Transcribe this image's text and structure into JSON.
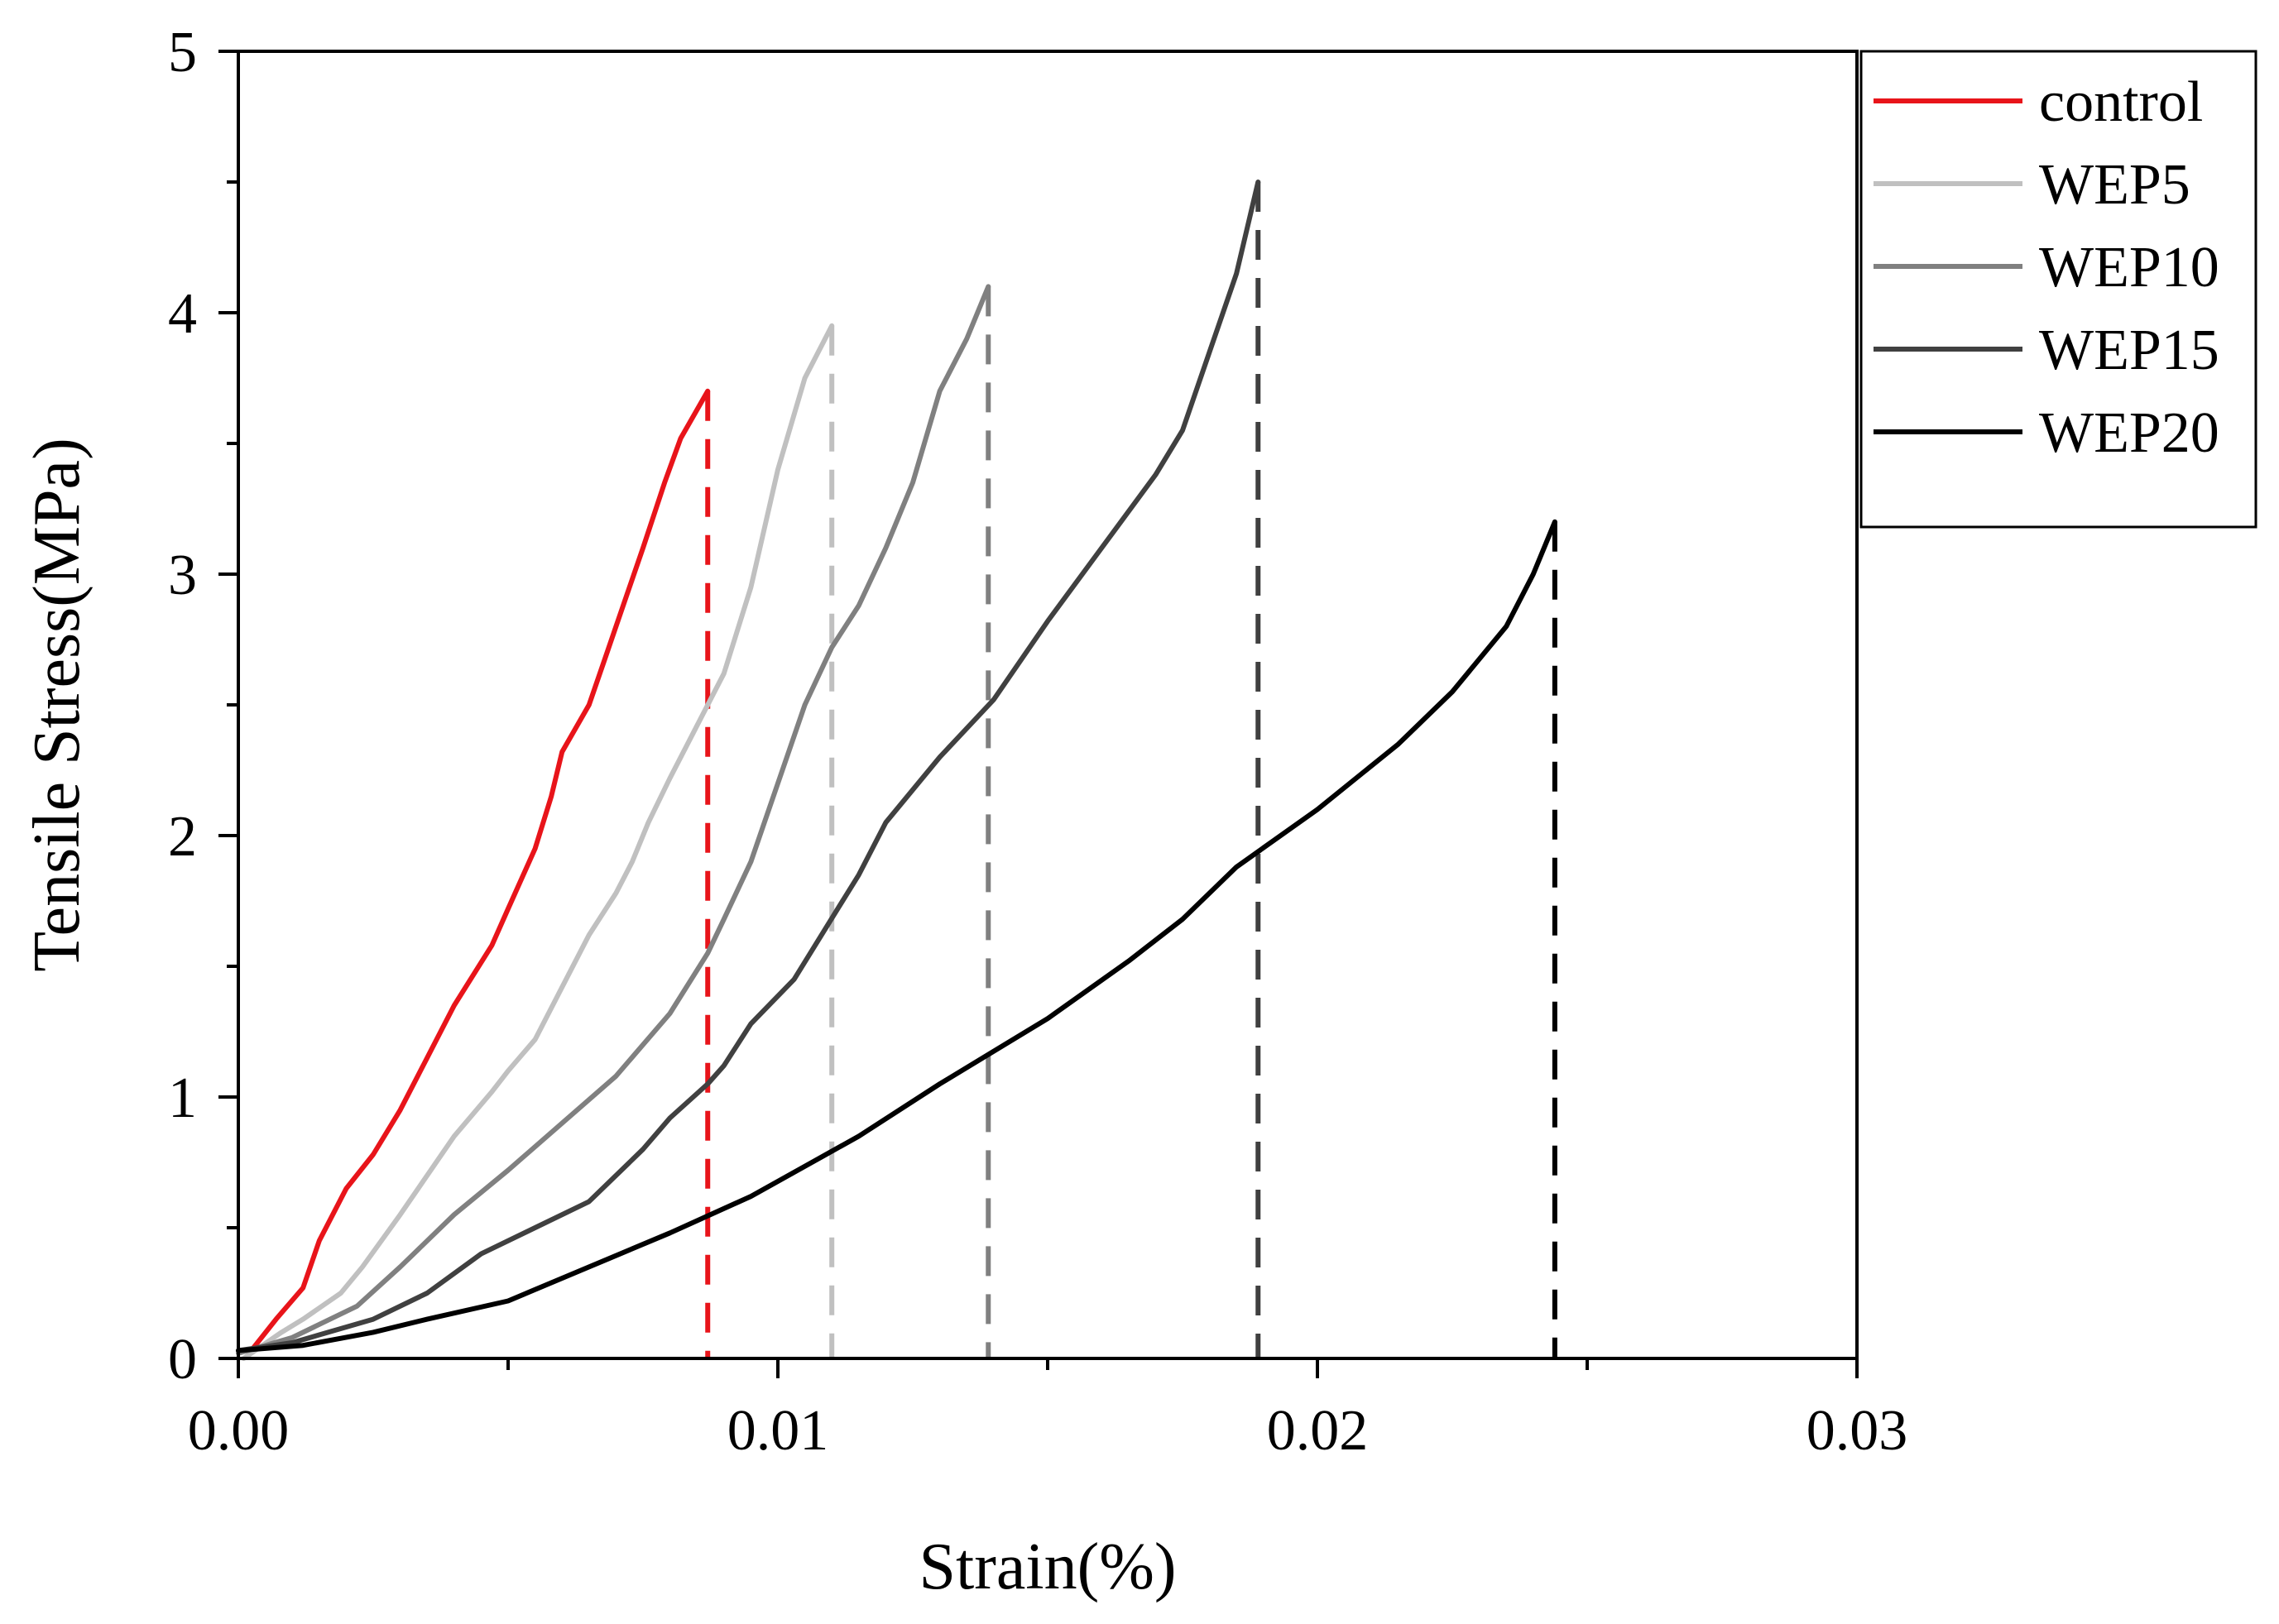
{
  "chart_data": {
    "type": "line",
    "title": "",
    "xlabel": "Strain(%)",
    "ylabel": "Tensile Stress(MPa)",
    "xlim": [
      0,
      0.03
    ],
    "ylim": [
      0,
      5
    ],
    "x_ticks": [
      0.0,
      0.01,
      0.02,
      0.03
    ],
    "x_tick_labels": [
      "0.00",
      "0.01",
      "0.02",
      "0.03"
    ],
    "y_ticks": [
      0,
      1,
      2,
      3,
      4,
      5
    ],
    "y_tick_labels": [
      "0",
      "1",
      "2",
      "3",
      "4",
      "5"
    ],
    "grid": false,
    "legend_position": "top-right",
    "series": [
      {
        "name": "control",
        "color": "#e8141a",
        "fracture_strain": 0.0087,
        "points": [
          [
            0.0002,
            0.02
          ],
          [
            0.0007,
            0.15
          ],
          [
            0.0012,
            0.27
          ],
          [
            0.0015,
            0.45
          ],
          [
            0.002,
            0.65
          ],
          [
            0.0025,
            0.78
          ],
          [
            0.003,
            0.95
          ],
          [
            0.0035,
            1.15
          ],
          [
            0.004,
            1.35
          ],
          [
            0.0047,
            1.58
          ],
          [
            0.005,
            1.72
          ],
          [
            0.0055,
            1.95
          ],
          [
            0.0058,
            2.15
          ],
          [
            0.006,
            2.32
          ],
          [
            0.0065,
            2.5
          ],
          [
            0.0068,
            2.68
          ],
          [
            0.0072,
            2.92
          ],
          [
            0.0075,
            3.1
          ],
          [
            0.0079,
            3.35
          ],
          [
            0.0082,
            3.52
          ],
          [
            0.0087,
            3.7
          ]
        ]
      },
      {
        "name": "WEP5",
        "color": "#c0c0c0",
        "fracture_strain": 0.011,
        "points": [
          [
            0.0001,
            0.0
          ],
          [
            0.0008,
            0.1
          ],
          [
            0.0012,
            0.15
          ],
          [
            0.0019,
            0.25
          ],
          [
            0.0023,
            0.35
          ],
          [
            0.003,
            0.55
          ],
          [
            0.0035,
            0.7
          ],
          [
            0.004,
            0.85
          ],
          [
            0.0047,
            1.02
          ],
          [
            0.005,
            1.1
          ],
          [
            0.0055,
            1.22
          ],
          [
            0.006,
            1.42
          ],
          [
            0.0065,
            1.62
          ],
          [
            0.007,
            1.78
          ],
          [
            0.0073,
            1.9
          ],
          [
            0.0076,
            2.05
          ],
          [
            0.008,
            2.22
          ],
          [
            0.0085,
            2.42
          ],
          [
            0.009,
            2.62
          ],
          [
            0.0095,
            2.95
          ],
          [
            0.01,
            3.4
          ],
          [
            0.0105,
            3.75
          ],
          [
            0.011,
            3.95
          ]
        ]
      },
      {
        "name": "WEP10",
        "color": "#808080",
        "fracture_strain": 0.0139,
        "points": [
          [
            0.0,
            0.02
          ],
          [
            0.001,
            0.08
          ],
          [
            0.0022,
            0.2
          ],
          [
            0.003,
            0.35
          ],
          [
            0.004,
            0.55
          ],
          [
            0.005,
            0.72
          ],
          [
            0.006,
            0.9
          ],
          [
            0.007,
            1.08
          ],
          [
            0.0075,
            1.2
          ],
          [
            0.008,
            1.32
          ],
          [
            0.0087,
            1.55
          ],
          [
            0.009,
            1.68
          ],
          [
            0.0095,
            1.9
          ],
          [
            0.01,
            2.2
          ],
          [
            0.0105,
            2.5
          ],
          [
            0.011,
            2.72
          ],
          [
            0.0115,
            2.88
          ],
          [
            0.012,
            3.1
          ],
          [
            0.0125,
            3.35
          ],
          [
            0.013,
            3.7
          ],
          [
            0.0135,
            3.9
          ],
          [
            0.0139,
            4.1
          ]
        ]
      },
      {
        "name": "WEP15",
        "color": "#404040",
        "fracture_strain": 0.0189,
        "points": [
          [
            0.0,
            0.03
          ],
          [
            0.001,
            0.06
          ],
          [
            0.0025,
            0.15
          ],
          [
            0.0035,
            0.25
          ],
          [
            0.0045,
            0.4
          ],
          [
            0.0055,
            0.5
          ],
          [
            0.0065,
            0.6
          ],
          [
            0.0075,
            0.8
          ],
          [
            0.008,
            0.92
          ],
          [
            0.0087,
            1.05
          ],
          [
            0.009,
            1.12
          ],
          [
            0.0095,
            1.28
          ],
          [
            0.0103,
            1.45
          ],
          [
            0.0112,
            1.75
          ],
          [
            0.0115,
            1.85
          ],
          [
            0.012,
            2.05
          ],
          [
            0.013,
            2.3
          ],
          [
            0.014,
            2.52
          ],
          [
            0.015,
            2.82
          ],
          [
            0.016,
            3.1
          ],
          [
            0.017,
            3.38
          ],
          [
            0.0175,
            3.55
          ],
          [
            0.018,
            3.85
          ],
          [
            0.0185,
            4.15
          ],
          [
            0.0189,
            4.5
          ]
        ]
      },
      {
        "name": "WEP20",
        "color": "#000000",
        "fracture_strain": 0.0244,
        "points": [
          [
            0.0,
            0.03
          ],
          [
            0.0012,
            0.05
          ],
          [
            0.0025,
            0.1
          ],
          [
            0.0035,
            0.15
          ],
          [
            0.005,
            0.22
          ],
          [
            0.0065,
            0.35
          ],
          [
            0.008,
            0.48
          ],
          [
            0.0095,
            0.62
          ],
          [
            0.0115,
            0.85
          ],
          [
            0.013,
            1.05
          ],
          [
            0.015,
            1.3
          ],
          [
            0.0165,
            1.52
          ],
          [
            0.0175,
            1.68
          ],
          [
            0.0185,
            1.88
          ],
          [
            0.02,
            2.1
          ],
          [
            0.0215,
            2.35
          ],
          [
            0.0225,
            2.55
          ],
          [
            0.0235,
            2.8
          ],
          [
            0.024,
            3.0
          ],
          [
            0.0244,
            3.2
          ]
        ]
      }
    ]
  }
}
